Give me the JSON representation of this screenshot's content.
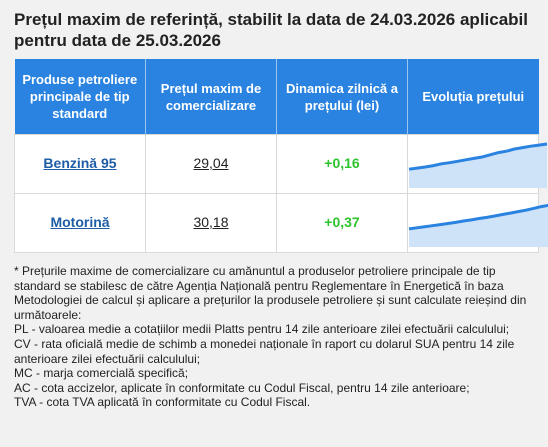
{
  "header": {
    "title": "Prețul maxim de referință, stabilit la data de 24.03.2026 aplicabil pentru data de 25.03.2026"
  },
  "table": {
    "columns": [
      "Produse petroliere principale de tip standard",
      "Prețul maxim de comercializare",
      "Dinamica zilnică a prețului (lei)",
      "Evoluția prețului"
    ],
    "rows": [
      {
        "product": "Benzină 95",
        "price": "29,04",
        "change": "+0,16",
        "trend": [
          0.3,
          0.33,
          0.36,
          0.4,
          0.45,
          0.48,
          0.52,
          0.56,
          0.6,
          0.64,
          0.7,
          0.76,
          0.8,
          0.86,
          0.9,
          0.94,
          0.97,
          1.0
        ]
      },
      {
        "product": "Motorină",
        "price": "30,18",
        "change": "+0,37",
        "trend": [
          0.28,
          0.31,
          0.34,
          0.37,
          0.4,
          0.43,
          0.46,
          0.5,
          0.53,
          0.57,
          0.6,
          0.64,
          0.68,
          0.72,
          0.76,
          0.8,
          0.85,
          0.9,
          0.94,
          0.98
        ]
      }
    ],
    "accent_color": "#2a83e0",
    "positive_color": "#2ec42e"
  },
  "footnote": {
    "lines": [
      "* Prețurile maxime de comercializare cu amănuntul a produselor petroliere principale de tip standard se stabilesc de către Agenția Națională pentru Reglementare în Energetică în baza Metodologiei de calcul și aplicare a prețurilor la produsele petroliere și sunt calculate reieșind din următoarele:",
      "PL - valoarea medie a cotațiilor medii Platts pentru 14 zile anterioare zilei efectuării calculului;",
      "CV - rata oficială medie de schimb a monedei naționale în raport cu dolarul SUA pentru 14 zile anterioare zilei efectuării calculului;",
      "MC - marja comercială specifică;",
      "AC - cota accizelor, aplicate în conformitate cu Codul Fiscal, pentru 14 zile anterioare;",
      "TVA - cota TVA aplicată în conformitate cu Codul Fiscal."
    ]
  }
}
